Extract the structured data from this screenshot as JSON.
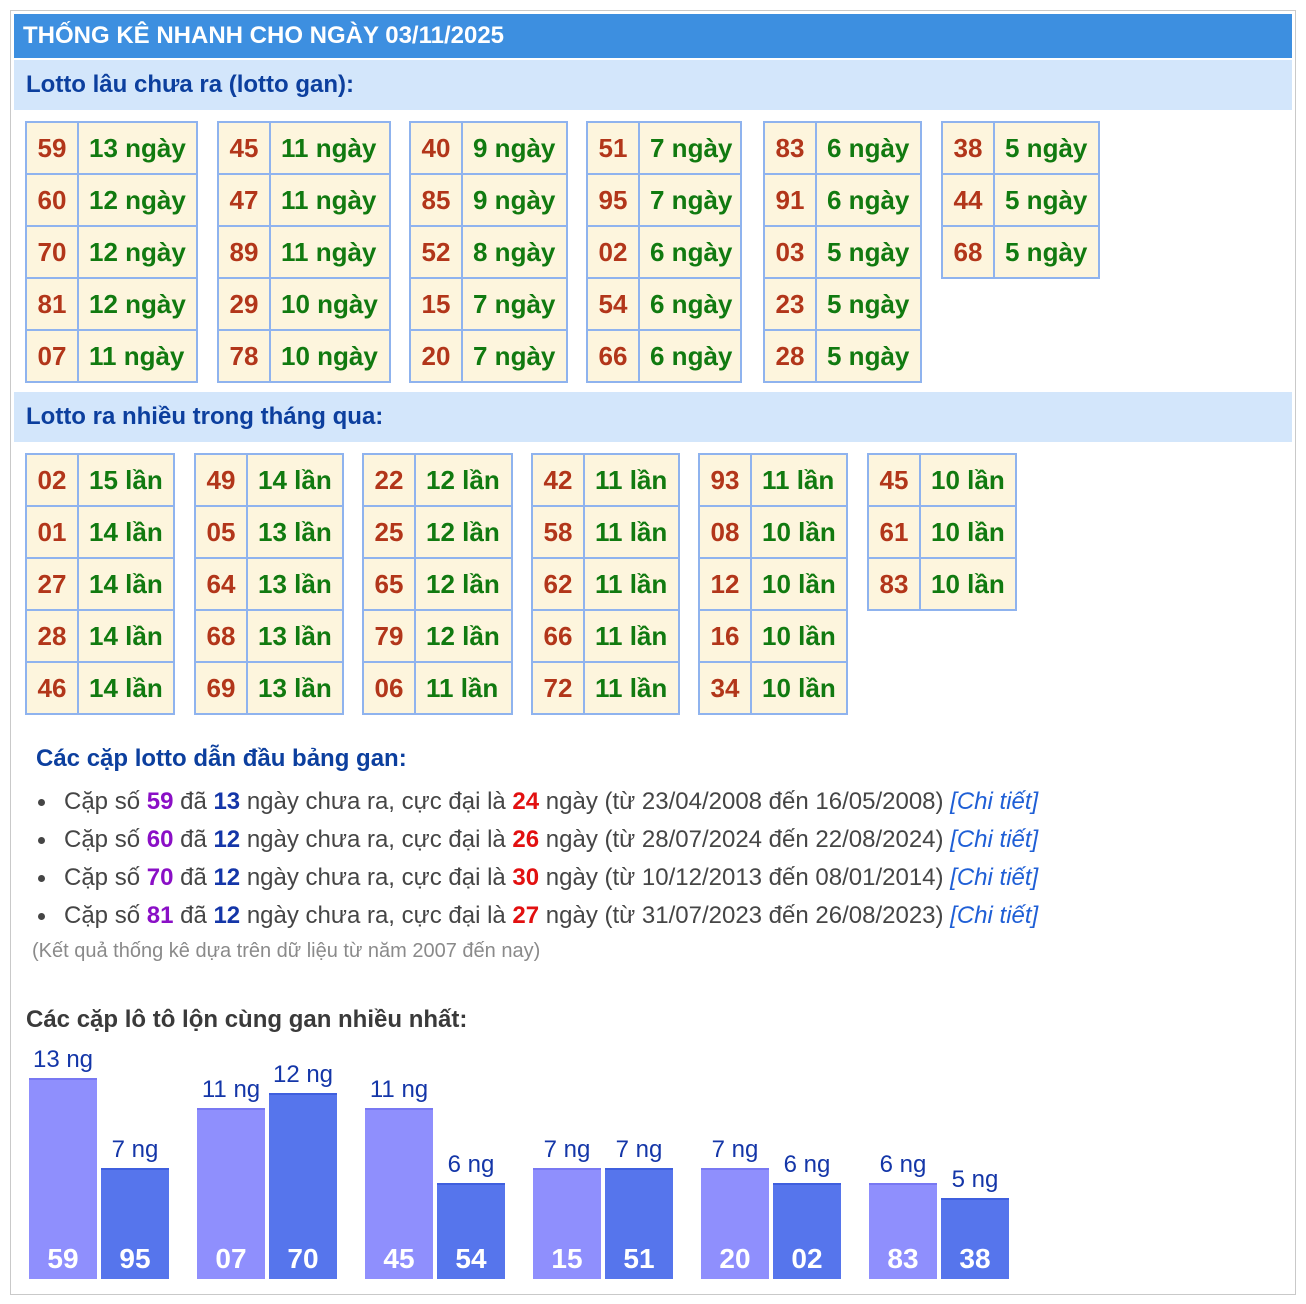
{
  "title": "THỐNG KÊ NHANH CHO NGÀY 03/11/2025",
  "gan_section": {
    "title": "Lotto lâu chưa ra (lotto gan):",
    "unit": "ngày",
    "groups": [
      [
        [
          "59",
          "13"
        ],
        [
          "60",
          "12"
        ],
        [
          "70",
          "12"
        ],
        [
          "81",
          "12"
        ],
        [
          "07",
          "11"
        ]
      ],
      [
        [
          "45",
          "11"
        ],
        [
          "47",
          "11"
        ],
        [
          "89",
          "11"
        ],
        [
          "29",
          "10"
        ],
        [
          "78",
          "10"
        ]
      ],
      [
        [
          "40",
          "9"
        ],
        [
          "85",
          "9"
        ],
        [
          "52",
          "8"
        ],
        [
          "15",
          "7"
        ],
        [
          "20",
          "7"
        ]
      ],
      [
        [
          "51",
          "7"
        ],
        [
          "95",
          "7"
        ],
        [
          "02",
          "6"
        ],
        [
          "54",
          "6"
        ],
        [
          "66",
          "6"
        ]
      ],
      [
        [
          "83",
          "6"
        ],
        [
          "91",
          "6"
        ],
        [
          "03",
          "5"
        ],
        [
          "23",
          "5"
        ],
        [
          "28",
          "5"
        ]
      ],
      [
        [
          "38",
          "5"
        ],
        [
          "44",
          "5"
        ],
        [
          "68",
          "5"
        ]
      ]
    ]
  },
  "freq_section": {
    "title": "Lotto ra nhiều trong tháng qua:",
    "unit": "lần",
    "groups": [
      [
        [
          "02",
          "15"
        ],
        [
          "01",
          "14"
        ],
        [
          "27",
          "14"
        ],
        [
          "28",
          "14"
        ],
        [
          "46",
          "14"
        ]
      ],
      [
        [
          "49",
          "14"
        ],
        [
          "05",
          "13"
        ],
        [
          "64",
          "13"
        ],
        [
          "68",
          "13"
        ],
        [
          "69",
          "13"
        ]
      ],
      [
        [
          "22",
          "12"
        ],
        [
          "25",
          "12"
        ],
        [
          "65",
          "12"
        ],
        [
          "79",
          "12"
        ],
        [
          "06",
          "11"
        ]
      ],
      [
        [
          "42",
          "11"
        ],
        [
          "58",
          "11"
        ],
        [
          "62",
          "11"
        ],
        [
          "66",
          "11"
        ],
        [
          "72",
          "11"
        ]
      ],
      [
        [
          "93",
          "11"
        ],
        [
          "08",
          "10"
        ],
        [
          "12",
          "10"
        ],
        [
          "16",
          "10"
        ],
        [
          "34",
          "10"
        ]
      ],
      [
        [
          "45",
          "10"
        ],
        [
          "61",
          "10"
        ],
        [
          "83",
          "10"
        ]
      ]
    ]
  },
  "pairs_section": {
    "title": "Các cặp lotto dẫn đầu bảng gan:",
    "items": [
      {
        "num": "59",
        "days": "13",
        "max": "24",
        "from": "23/04/2008",
        "to": "16/05/2008"
      },
      {
        "num": "60",
        "days": "12",
        "max": "26",
        "from": "28/07/2024",
        "to": "22/08/2024"
      },
      {
        "num": "70",
        "days": "12",
        "max": "30",
        "from": "10/12/2013",
        "to": "08/01/2014"
      },
      {
        "num": "81",
        "days": "12",
        "max": "27",
        "from": "31/07/2023",
        "to": "26/08/2023"
      }
    ],
    "t1": "Cặp số ",
    "t2": " đã ",
    "t3": " ngày chưa ra, cực đại là ",
    "t4": " ngày (từ ",
    "t5": " đến ",
    "t6": ") ",
    "detail_label": "[Chi tiết]",
    "note": "(Kết quả thống kê dựa trên dữ liệu từ năm 2007 đến nay)"
  },
  "chart_data": {
    "type": "bar",
    "title": "Các cặp lô tô lộn cùng gan nhiều nhất:",
    "unit_suffix": " ng",
    "pairs": [
      [
        {
          "num": "59",
          "days": 13
        },
        {
          "num": "95",
          "days": 7
        }
      ],
      [
        {
          "num": "07",
          "days": 11
        },
        {
          "num": "70",
          "days": 12
        }
      ],
      [
        {
          "num": "45",
          "days": 11
        },
        {
          "num": "54",
          "days": 6
        }
      ],
      [
        {
          "num": "15",
          "days": 7
        },
        {
          "num": "51",
          "days": 7
        }
      ],
      [
        {
          "num": "20",
          "days": 7
        },
        {
          "num": "02",
          "days": 6
        }
      ],
      [
        {
          "num": "83",
          "days": 6
        },
        {
          "num": "38",
          "days": 5
        }
      ]
    ]
  },
  "colors": {
    "header_bg": "#3d8fe0",
    "subhead_bg": "#d3e6fb",
    "cell_bg": "#fdf5dd",
    "cell_border": "#8fb3ee",
    "num": "#b2361a",
    "value": "#117a10",
    "bar_light": "#8f8ffd",
    "bar_dark": "#5675ec"
  }
}
